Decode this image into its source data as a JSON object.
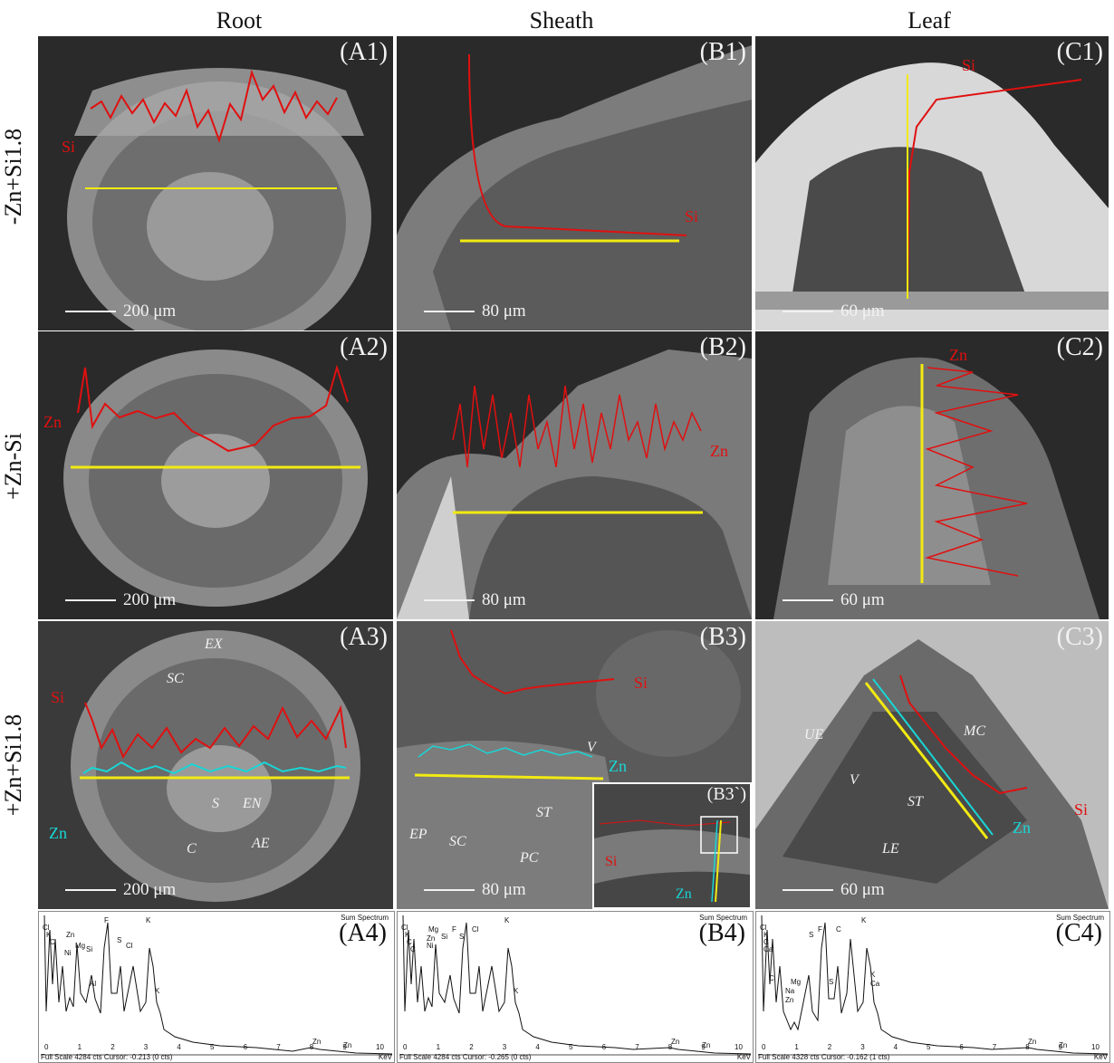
{
  "columns": [
    "Root",
    "Sheath",
    "Leaf"
  ],
  "rows": [
    "-Zn+Si1.8",
    "+Zn-Si",
    "+Zn+Si1.8"
  ],
  "panels": {
    "A1": {
      "tag": "(A1)",
      "scale": "200 μm",
      "lines": [
        "Si"
      ]
    },
    "B1": {
      "tag": "(B1)",
      "scale": "80 μm",
      "lines": [
        "Si"
      ]
    },
    "C1": {
      "tag": "(C1)",
      "scale": "60 μm",
      "lines": [
        "Si"
      ]
    },
    "A2": {
      "tag": "(A2)",
      "scale": "200 μm",
      "lines": [
        "Zn"
      ]
    },
    "B2": {
      "tag": "(B2)",
      "scale": "80 μm",
      "lines": [
        "Zn"
      ]
    },
    "C2": {
      "tag": "(C2)",
      "scale": "60 μm",
      "lines": [
        "Zn"
      ]
    },
    "A3": {
      "tag": "(A3)",
      "scale": "200 μm",
      "lines": [
        "Si",
        "Zn"
      ],
      "annotations": [
        "EX",
        "SC",
        "S",
        "EN",
        "C",
        "AE"
      ]
    },
    "B3": {
      "tag": "(B3)",
      "scale": "80 μm",
      "lines": [
        "Si",
        "Zn"
      ],
      "annotations": [
        "V",
        "ST",
        "EP",
        "SC",
        "PC"
      ],
      "inset": {
        "tag": "(B3`)",
        "lines": [
          "Si",
          "Zn"
        ]
      }
    },
    "C3": {
      "tag": "(C3)",
      "scale": "60 μm",
      "lines": [
        "Si",
        "Zn"
      ],
      "annotations": [
        "UE",
        "MC",
        "V",
        "ST",
        "LE"
      ]
    }
  },
  "spectra": {
    "A4": {
      "tag": "(A4)",
      "title": "Sum Spectrum",
      "footer": "Full Scale 4284 cts Cursor: -0.213 (0 cts)",
      "unit": "KeV",
      "elements": [
        "Cl",
        "K",
        "C",
        "Zn",
        "Ni",
        "Mg",
        "Si",
        "Al",
        "F",
        "S",
        "Cl",
        "K",
        "K",
        "Zn",
        "Zn"
      ]
    },
    "B4": {
      "tag": "(B4)",
      "title": "Sum Spectrum",
      "footer": "Full Scale 4284 cts Cursor: -0.265 (0 cts)",
      "unit": "KeV",
      "elements": [
        "Cl",
        "K",
        "C",
        "C",
        "Mg",
        "Zn",
        "Ni",
        "Si",
        "F",
        "S",
        "Cl",
        "K",
        "K",
        "Zn",
        "Zn"
      ]
    },
    "C4": {
      "tag": "(C4)",
      "title": "Sum Spectrum",
      "footer": "Full Scale 4328 cts Cursor: -0.162 (1 cts)",
      "unit": "KeV",
      "elements": [
        "Cl",
        "K",
        "C",
        "Ca",
        "C",
        "Mg",
        "Na",
        "Zn",
        "S",
        "F",
        "C",
        "K",
        "S",
        "K",
        "Ca",
        "Zn",
        "Zn"
      ]
    }
  },
  "axis_ticks": [
    "0",
    "1",
    "2",
    "3",
    "4",
    "5",
    "6",
    "7",
    "8",
    "9",
    "10"
  ],
  "colors": {
    "si_line": "#e01010",
    "zn_line": "#19d6d6",
    "scan_line": "#f2ea12",
    "sem_bg": "#2a2a2a"
  }
}
